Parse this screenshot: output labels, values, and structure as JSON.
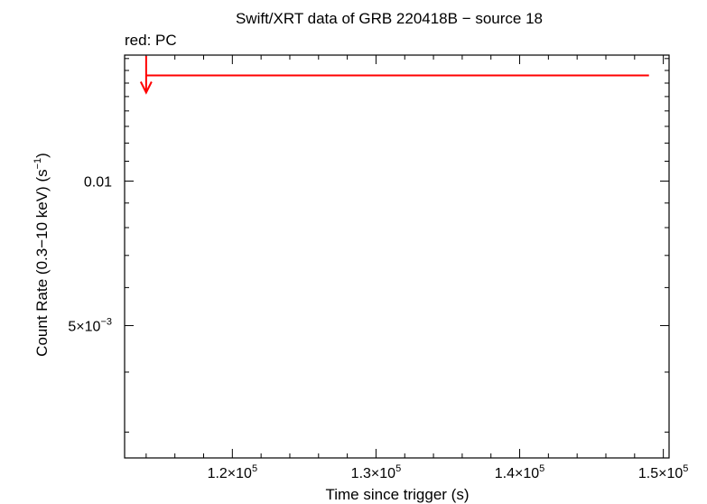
{
  "chart_data": {
    "type": "scatter",
    "title": "Swift/XRT data of GRB 220418B − source 18",
    "subtitle": "red: PC",
    "xlabel": "Time since trigger (s)",
    "ylabel": {
      "pre": "Count Rate (0.3−10 keV) (s",
      "sup": "−1",
      "post": ")"
    },
    "x_scale": "linear",
    "y_scale": "log",
    "xlim": [
      112500,
      150400
    ],
    "ylim": [
      0.00265,
      0.0183
    ],
    "x_ticks": [
      {
        "value": 120000,
        "mant": "1.2×10",
        "exp": "5"
      },
      {
        "value": 130000,
        "mant": "1.3×10",
        "exp": "5"
      },
      {
        "value": 140000,
        "mant": "1.4×10",
        "exp": "5"
      },
      {
        "value": 150000,
        "mant": "1.5×10",
        "exp": "5"
      }
    ],
    "y_ticks": [
      {
        "value": 0.01,
        "text": "0.01",
        "exp": ""
      },
      {
        "value": 0.005,
        "text": "5×10",
        "exp": "−3"
      }
    ],
    "series": [
      {
        "color": "#ff0000",
        "points": [
          {
            "x": 114000,
            "x_lo": 114000,
            "x_hi": 149000,
            "y": 0.0166,
            "upper_limit": true
          }
        ]
      }
    ]
  }
}
